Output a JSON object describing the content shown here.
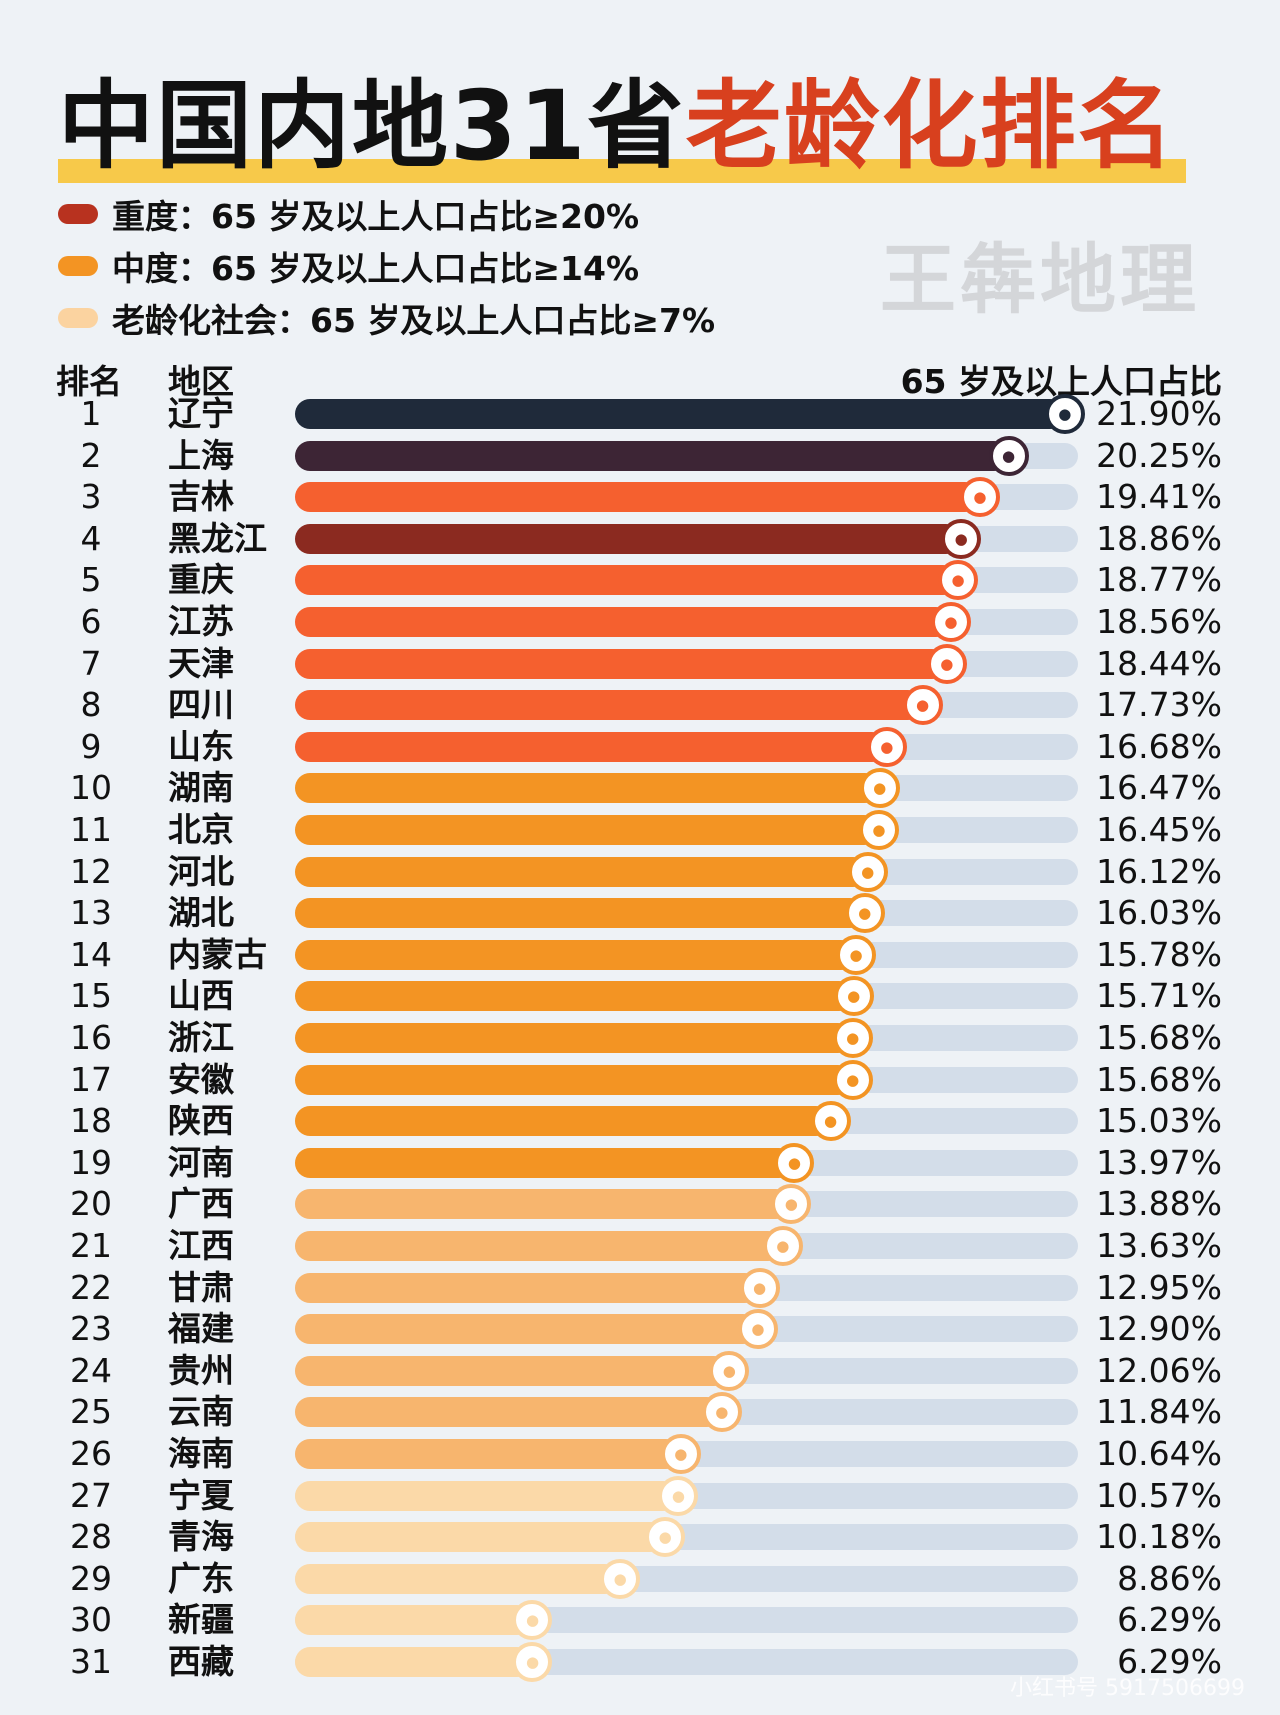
{
  "title": {
    "part1": "中国内地31省",
    "part2": "老龄化排名"
  },
  "legend": [
    {
      "label": "重度：65 岁及以上人口占比≥20%",
      "color": "#b8321f"
    },
    {
      "label": "中度：65 岁及以上人口占比≥14%",
      "color": "#f39423"
    },
    {
      "label": "老龄化社会：65 岁及以上人口占比≥7%",
      "color": "#fbd3a0"
    }
  ],
  "watermark": "王犇地理",
  "footer_watermark": "小红书号 5917506699",
  "headers": {
    "rank": "排名",
    "region": "地区",
    "value": "65 岁及以上人口占比"
  },
  "chart_data": {
    "type": "bar",
    "orientation": "horizontal",
    "ylabel": "65 岁及以上人口占比",
    "unit": "%",
    "categories": [
      "辽宁",
      "上海",
      "吉林",
      "黑龙江",
      "重庆",
      "江苏",
      "天津",
      "四川",
      "山东",
      "湖南",
      "北京",
      "河北",
      "湖北",
      "内蒙古",
      "山西",
      "浙江",
      "安徽",
      "陕西",
      "河南",
      "广西",
      "江西",
      "甘肃",
      "福建",
      "贵州",
      "云南",
      "海南",
      "宁夏",
      "青海",
      "广东",
      "新疆",
      "西藏"
    ],
    "ranks": [
      1,
      2,
      3,
      4,
      5,
      6,
      7,
      8,
      9,
      10,
      11,
      12,
      13,
      14,
      15,
      16,
      17,
      18,
      19,
      20,
      21,
      22,
      23,
      24,
      25,
      26,
      27,
      28,
      29,
      30,
      31
    ],
    "values": [
      21.9,
      20.25,
      19.41,
      18.86,
      18.77,
      18.56,
      18.44,
      17.73,
      16.68,
      16.47,
      16.45,
      16.12,
      16.03,
      15.78,
      15.71,
      15.68,
      15.68,
      15.03,
      13.97,
      13.88,
      13.63,
      12.95,
      12.9,
      12.06,
      11.84,
      10.64,
      10.57,
      10.18,
      8.86,
      6.29,
      6.29
    ],
    "labels": [
      "21.90%",
      "20.25%",
      "19.41%",
      "18.86%",
      "18.77%",
      "18.56%",
      "18.44%",
      "17.73%",
      "16.68%",
      "16.47%",
      "16.45%",
      "16.12%",
      "16.03%",
      "15.78%",
      "15.71%",
      "15.68%",
      "15.68%",
      "15.03%",
      "13.97%",
      "13.88%",
      "13.63%",
      "12.95%",
      "12.90%",
      "12.06%",
      "11.84%",
      "10.64%",
      "10.57%",
      "10.18%",
      "8.86%",
      "6.29%",
      ""
    ],
    "colors": {
      "top1": "#1f2a3a",
      "top2": "#3d2535",
      "top4": "#8b2a20",
      "severe_group": "#f5602f",
      "moderate": "#f39423",
      "aging_high": "#f7b56e",
      "aging_low": "#fbd9a8",
      "track": "#d3dde9"
    }
  }
}
